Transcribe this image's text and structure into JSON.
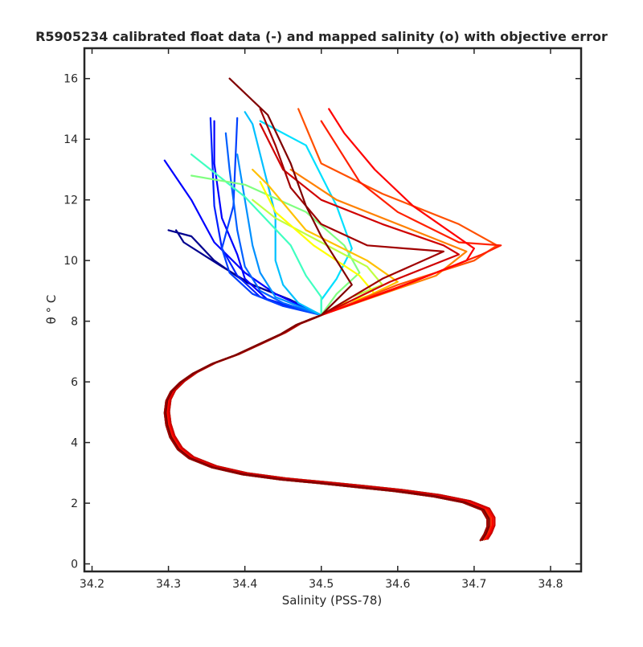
{
  "chart_data": {
    "type": "line",
    "title": "R5905234 calibrated float data (-) and mapped salinity (o) with objective error",
    "xlabel": "Salinity (PSS-78)",
    "ylabel": "θ ° C",
    "xlim": [
      34.19,
      34.84
    ],
    "ylim": [
      -0.25,
      17.0
    ],
    "xticks": [
      34.2,
      34.3,
      34.4,
      34.5,
      34.6,
      34.7,
      34.8
    ],
    "xtick_labels": [
      "34.2",
      "34.3",
      "34.4",
      "34.5",
      "34.6",
      "34.7",
      "34.8"
    ],
    "yticks": [
      0,
      2,
      4,
      6,
      8,
      10,
      12,
      14,
      16
    ],
    "ytick_labels": [
      "0",
      "2",
      "4",
      "6",
      "8",
      "10",
      "12",
      "14",
      "16"
    ],
    "grid": false,
    "colormap": "jet (profile number: early = blue, late = dark red)",
    "colormap_stops": [
      "#00008f",
      "#0000ff",
      "#0080ff",
      "#00ffff",
      "#80ff80",
      "#ffff00",
      "#ff8000",
      "#ff0000",
      "#800000"
    ],
    "deep_profile": [
      [
        34.713,
        0.8
      ],
      [
        34.718,
        1.0
      ],
      [
        34.722,
        1.25
      ],
      [
        34.722,
        1.5
      ],
      [
        34.715,
        1.8
      ],
      [
        34.69,
        2.05
      ],
      [
        34.65,
        2.25
      ],
      [
        34.6,
        2.42
      ],
      [
        34.55,
        2.55
      ],
      [
        34.5,
        2.68
      ],
      [
        34.45,
        2.8
      ],
      [
        34.4,
        2.97
      ],
      [
        34.36,
        3.2
      ],
      [
        34.33,
        3.5
      ],
      [
        34.315,
        3.8
      ],
      [
        34.305,
        4.2
      ],
      [
        34.3,
        4.6
      ],
      [
        34.298,
        5.0
      ],
      [
        34.3,
        5.4
      ],
      [
        34.306,
        5.7
      ],
      [
        34.318,
        6.0
      ],
      [
        34.335,
        6.3
      ],
      [
        34.36,
        6.62
      ],
      [
        34.39,
        6.9
      ],
      [
        34.42,
        7.25
      ],
      [
        34.45,
        7.6
      ],
      [
        34.47,
        7.9
      ],
      [
        34.49,
        8.1
      ]
    ],
    "series": [
      {
        "color": "#00008f",
        "values": [
          [
            34.5,
            8.2
          ],
          [
            34.46,
            8.7
          ],
          [
            34.4,
            9.3
          ],
          [
            34.36,
            10.0
          ],
          [
            34.33,
            10.8
          ],
          [
            34.3,
            11.0
          ]
        ]
      },
      {
        "color": "#00008f",
        "values": [
          [
            34.5,
            8.2
          ],
          [
            34.45,
            8.8
          ],
          [
            34.41,
            9.2
          ],
          [
            34.37,
            9.8
          ],
          [
            34.32,
            10.6
          ],
          [
            34.31,
            11.0
          ]
        ]
      },
      {
        "color": "#0000ff",
        "values": [
          [
            34.5,
            8.2
          ],
          [
            34.44,
            8.9
          ],
          [
            34.4,
            9.6
          ],
          [
            34.36,
            10.6
          ],
          [
            34.33,
            12.0
          ],
          [
            34.295,
            13.3
          ]
        ]
      },
      {
        "color": "#0000ff",
        "values": [
          [
            34.5,
            8.2
          ],
          [
            34.43,
            8.7
          ],
          [
            34.4,
            9.4
          ],
          [
            34.39,
            10.2
          ],
          [
            34.37,
            11.4
          ],
          [
            34.36,
            13.2
          ],
          [
            34.36,
            14.6
          ]
        ]
      },
      {
        "color": "#0020ff",
        "values": [
          [
            34.5,
            8.2
          ],
          [
            34.42,
            8.8
          ],
          [
            34.39,
            9.5
          ],
          [
            34.37,
            10.4
          ],
          [
            34.36,
            11.8
          ],
          [
            34.355,
            14.7
          ]
        ]
      },
      {
        "color": "#0040ff",
        "values": [
          [
            34.5,
            8.2
          ],
          [
            34.45,
            8.5
          ],
          [
            34.41,
            8.9
          ],
          [
            34.38,
            9.6
          ],
          [
            34.37,
            10.4
          ],
          [
            34.385,
            11.8
          ],
          [
            34.39,
            14.7
          ]
        ]
      },
      {
        "color": "#0060ff",
        "values": [
          [
            34.5,
            8.2
          ],
          [
            34.45,
            8.6
          ],
          [
            34.42,
            9.0
          ],
          [
            34.4,
            9.8
          ],
          [
            34.39,
            11.0
          ],
          [
            34.38,
            13.0
          ],
          [
            34.375,
            14.2
          ]
        ]
      },
      {
        "color": "#0090ff",
        "values": [
          [
            34.5,
            8.2
          ],
          [
            34.44,
            8.8
          ],
          [
            34.42,
            9.6
          ],
          [
            34.41,
            10.5
          ],
          [
            34.4,
            12.0
          ],
          [
            34.39,
            13.5
          ]
        ]
      },
      {
        "color": "#00c0ff",
        "values": [
          [
            34.5,
            8.2
          ],
          [
            34.47,
            8.6
          ],
          [
            34.45,
            9.2
          ],
          [
            34.44,
            10.0
          ],
          [
            34.44,
            11.5
          ],
          [
            34.41,
            14.5
          ],
          [
            34.4,
            14.9
          ]
        ]
      },
      {
        "color": "#00e0ff",
        "values": [
          [
            34.5,
            8.2
          ],
          [
            34.5,
            8.7
          ],
          [
            34.52,
            9.4
          ],
          [
            34.54,
            10.4
          ],
          [
            34.52,
            11.8
          ],
          [
            34.48,
            13.8
          ],
          [
            34.42,
            14.6
          ]
        ]
      },
      {
        "color": "#40ffc0",
        "values": [
          [
            34.5,
            8.2
          ],
          [
            34.5,
            8.8
          ],
          [
            34.48,
            9.5
          ],
          [
            34.46,
            10.5
          ],
          [
            34.4,
            12.1
          ],
          [
            34.33,
            13.5
          ]
        ]
      },
      {
        "color": "#80ff80",
        "values": [
          [
            34.5,
            8.2
          ],
          [
            34.52,
            8.9
          ],
          [
            34.55,
            9.6
          ],
          [
            34.53,
            10.5
          ],
          [
            34.48,
            11.6
          ],
          [
            34.4,
            12.5
          ],
          [
            34.33,
            12.8
          ]
        ]
      },
      {
        "color": "#c0ff40",
        "values": [
          [
            34.5,
            8.2
          ],
          [
            34.54,
            8.8
          ],
          [
            34.58,
            9.2
          ],
          [
            34.56,
            9.8
          ],
          [
            34.5,
            10.6
          ],
          [
            34.44,
            11.4
          ],
          [
            34.41,
            12.0
          ]
        ]
      },
      {
        "color": "#ffff00",
        "values": [
          [
            34.5,
            8.2
          ],
          [
            34.53,
            8.6
          ],
          [
            34.57,
            8.9
          ],
          [
            34.55,
            9.5
          ],
          [
            34.49,
            10.5
          ],
          [
            34.44,
            11.6
          ],
          [
            34.42,
            12.6
          ]
        ]
      },
      {
        "color": "#ffc000",
        "values": [
          [
            34.5,
            8.2
          ],
          [
            34.55,
            8.7
          ],
          [
            34.6,
            9.3
          ],
          [
            34.56,
            10.0
          ],
          [
            34.48,
            11.0
          ],
          [
            34.43,
            12.5
          ],
          [
            34.41,
            13.0
          ]
        ]
      },
      {
        "color": "#ff8000",
        "values": [
          [
            34.5,
            8.2
          ],
          [
            34.58,
            8.9
          ],
          [
            34.65,
            9.5
          ],
          [
            34.69,
            10.3
          ],
          [
            34.62,
            11.0
          ],
          [
            34.52,
            12.0
          ],
          [
            34.46,
            13.0
          ]
        ]
      },
      {
        "color": "#ff5000",
        "values": [
          [
            34.5,
            8.2
          ],
          [
            34.6,
            9.2
          ],
          [
            34.7,
            10.0
          ],
          [
            34.73,
            10.5
          ],
          [
            34.68,
            11.2
          ],
          [
            34.58,
            12.2
          ],
          [
            34.5,
            13.2
          ],
          [
            34.47,
            15.0
          ]
        ]
      },
      {
        "color": "#ff2000",
        "values": [
          [
            34.5,
            8.2
          ],
          [
            34.62,
            9.3
          ],
          [
            34.71,
            10.2
          ],
          [
            34.735,
            10.5
          ],
          [
            34.68,
            10.6
          ],
          [
            34.6,
            11.6
          ],
          [
            34.55,
            12.6
          ],
          [
            34.52,
            13.8
          ],
          [
            34.5,
            14.6
          ]
        ]
      },
      {
        "color": "#ff0000",
        "values": [
          [
            34.5,
            8.2
          ],
          [
            34.6,
            9.1
          ],
          [
            34.69,
            10.0
          ],
          [
            34.7,
            10.4
          ],
          [
            34.62,
            11.8
          ],
          [
            34.57,
            13.0
          ],
          [
            34.53,
            14.2
          ],
          [
            34.51,
            15.0
          ]
        ]
      },
      {
        "color": "#d00000",
        "values": [
          [
            34.5,
            8.2
          ],
          [
            34.59,
            9.3
          ],
          [
            34.68,
            10.2
          ],
          [
            34.66,
            10.5
          ],
          [
            34.58,
            11.2
          ],
          [
            34.5,
            12.0
          ],
          [
            34.45,
            13.0
          ],
          [
            34.42,
            14.5
          ]
        ]
      },
      {
        "color": "#a00000",
        "values": [
          [
            34.5,
            8.2
          ],
          [
            34.58,
            9.4
          ],
          [
            34.66,
            10.3
          ],
          [
            34.56,
            10.5
          ],
          [
            34.5,
            11.2
          ],
          [
            34.46,
            12.4
          ],
          [
            34.44,
            13.8
          ],
          [
            34.42,
            15.0
          ]
        ]
      },
      {
        "color": "#800000",
        "values": [
          [
            34.5,
            8.2
          ],
          [
            34.54,
            9.2
          ],
          [
            34.52,
            10.0
          ],
          [
            34.5,
            10.8
          ],
          [
            34.48,
            11.8
          ],
          [
            34.46,
            13.2
          ],
          [
            34.43,
            14.8
          ],
          [
            34.38,
            16.0
          ]
        ]
      }
    ]
  }
}
